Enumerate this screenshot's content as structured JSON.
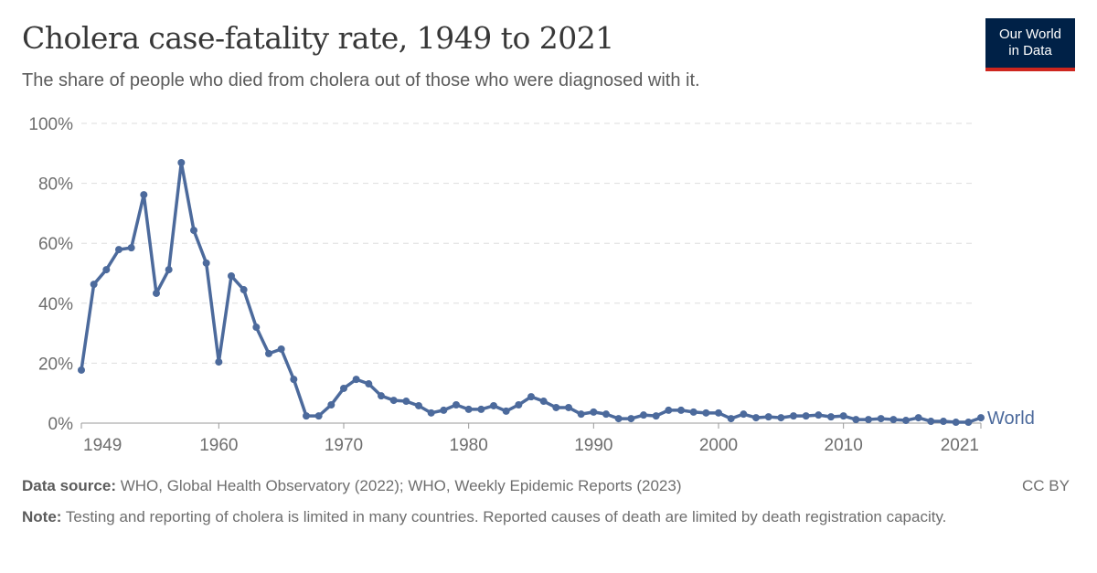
{
  "header": {
    "title": "Cholera case-fatality rate, 1949 to 2021",
    "subtitle": "The share of people who died from cholera out of those who were diagnosed with it.",
    "logo": "Our World in Data",
    "logo_line1": "Our World",
    "logo_line2": "in Data"
  },
  "footer": {
    "source_label": "Data source:",
    "source": "WHO, Global Health Observatory (2022); WHO, Weekly Epidemic Reports (2023)",
    "note_label": "Note:",
    "note": "Testing and reporting of cholera is limited in many countries. Reported causes of death are limited by death registration capacity.",
    "license": "CC BY"
  },
  "chart_data": {
    "type": "line",
    "title": "Cholera case-fatality rate, 1949 to 2021",
    "xlabel": "",
    "ylabel": "",
    "xlim": [
      1949,
      2021
    ],
    "ylim": [
      0,
      100
    ],
    "grid": true,
    "y_unit": "%",
    "yticks": [
      0,
      20,
      40,
      60,
      80,
      100
    ],
    "ytick_labels": [
      "0%",
      "20%",
      "40%",
      "60%",
      "80%",
      "100%"
    ],
    "xticks": [
      1949,
      1960,
      1970,
      1980,
      1990,
      2000,
      2010,
      2021
    ],
    "xtick_labels": [
      "1949",
      "1960",
      "1970",
      "1980",
      "1990",
      "2000",
      "2010",
      "2021"
    ],
    "colors": {
      "World": "#4c6a9c"
    },
    "series": [
      {
        "name": "World",
        "x": [
          1949,
          1950,
          1951,
          1952,
          1953,
          1954,
          1955,
          1956,
          1957,
          1958,
          1959,
          1960,
          1961,
          1962,
          1963,
          1964,
          1965,
          1966,
          1967,
          1968,
          1969,
          1970,
          1971,
          1972,
          1973,
          1974,
          1975,
          1976,
          1977,
          1978,
          1979,
          1980,
          1981,
          1982,
          1983,
          1984,
          1985,
          1986,
          1987,
          1988,
          1989,
          1990,
          1991,
          1992,
          1993,
          1994,
          1995,
          1996,
          1997,
          1998,
          1999,
          2000,
          2001,
          2002,
          2003,
          2004,
          2005,
          2006,
          2007,
          2008,
          2009,
          2010,
          2011,
          2012,
          2013,
          2014,
          2015,
          2016,
          2017,
          2018,
          2019,
          2020,
          2021
        ],
        "values": [
          17.7,
          46.3,
          51.2,
          57.9,
          58.5,
          76.2,
          43.3,
          51.2,
          86.9,
          64.3,
          53.4,
          20.4,
          49.1,
          44.5,
          32,
          23.2,
          24.7,
          14.6,
          2.4,
          2.4,
          6.1,
          11.6,
          14.6,
          13.1,
          9.1,
          7.6,
          7.3,
          5.8,
          3.4,
          4.3,
          6.1,
          4.6,
          4.6,
          5.8,
          4.0,
          6.1,
          8.8,
          7.3,
          5.2,
          5.2,
          3.0,
          3.7,
          3.0,
          1.5,
          1.5,
          2.7,
          2.4,
          4.3,
          4.3,
          3.7,
          3.4,
          3.4,
          1.5,
          3.0,
          1.8,
          2.1,
          1.8,
          2.4,
          2.4,
          2.7,
          2.1,
          2.4,
          1.2,
          1.2,
          1.5,
          1.2,
          0.9,
          1.8,
          0.6,
          0.6,
          0.3,
          0.3,
          1.8
        ]
      }
    ]
  }
}
